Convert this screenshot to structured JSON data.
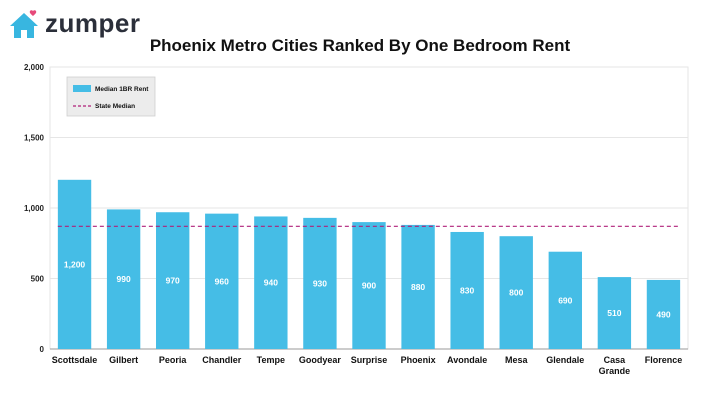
{
  "brand": {
    "name": "zumper",
    "logo_color": "#38b6e0",
    "heart_color": "#e64a7a"
  },
  "colors": {
    "bar": "#45bde6",
    "state_line": "#b0207a",
    "grid": "#e6e6e6",
    "axis": "#999999"
  },
  "chart_data": {
    "type": "bar",
    "title": "Phoenix Metro Cities Ranked By One Bedroom Rent",
    "xlabel": "",
    "ylabel": "",
    "ylim": [
      0,
      2000
    ],
    "yticks": [
      "0",
      "500",
      "1,000",
      "1,500",
      "2,000"
    ],
    "ytick_values": [
      0,
      500,
      1000,
      1500,
      2000
    ],
    "grid": true,
    "categories": [
      [
        "Scottsdale"
      ],
      [
        "Gilbert"
      ],
      [
        "Peoria"
      ],
      [
        "Chandler"
      ],
      [
        "Tempe"
      ],
      [
        "Goodyear"
      ],
      [
        "Surprise"
      ],
      [
        "Phoenix"
      ],
      [
        "Avondale"
      ],
      [
        "Mesa"
      ],
      [
        "Glendale"
      ],
      [
        "Casa",
        "Grande"
      ],
      [
        "Florence"
      ]
    ],
    "series": [
      {
        "name": "Median 1BR Rent",
        "values": [
          1200,
          990,
          970,
          960,
          940,
          930,
          900,
          880,
          830,
          800,
          690,
          510,
          490
        ],
        "labels": [
          "1,200",
          "990",
          "970",
          "960",
          "940",
          "930",
          "900",
          "880",
          "830",
          "800",
          "690",
          "510",
          "490"
        ]
      }
    ],
    "reference_line": {
      "name": "State Median",
      "value": 870,
      "style": "dashed"
    },
    "legend": {
      "position": "top-left",
      "items": [
        "Median 1BR Rent",
        "State Median"
      ]
    }
  }
}
